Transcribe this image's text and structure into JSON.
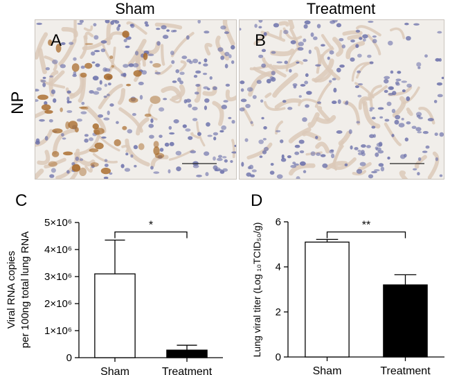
{
  "headers": {
    "left": "Sham",
    "right": "Treatment"
  },
  "row_label": "NP",
  "panel_letters": [
    "A",
    "B",
    "C",
    "D"
  ],
  "colors": {
    "tissue_bg": "#eeebe7",
    "nuclei": "#6b6fa8",
    "stain": "#b07a3a",
    "bar_sham": "#ffffff",
    "bar_treatment": "#000000"
  },
  "chart_data": [
    {
      "type": "bar",
      "panel": "C",
      "categories": [
        "Sham",
        "Treatment"
      ],
      "values": [
        3100000,
        280000
      ],
      "error_upper": [
        1250000,
        180000
      ],
      "fills": [
        "#ffffff",
        "#000000"
      ],
      "ylabel_line1": "Viral RNA copies",
      "ylabel_line2": "per 100ng total lung RNA",
      "ylim": [
        0,
        5000000
      ],
      "yticks": [
        0,
        1000000,
        2000000,
        3000000,
        4000000,
        5000000
      ],
      "ytick_labels": [
        "0",
        "1×10⁶",
        "2×10⁶",
        "3×10⁶",
        "4×10⁶",
        "5×10⁶"
      ],
      "significance": {
        "label": "*",
        "y": 4650000,
        "from": 0,
        "to": 1
      }
    },
    {
      "type": "bar",
      "panel": "D",
      "categories": [
        "Sham",
        "Treatment"
      ],
      "values": [
        5.1,
        3.2
      ],
      "error_upper": [
        0.12,
        0.45
      ],
      "fills": [
        "#ffffff",
        "#000000"
      ],
      "ylabel": "Lung viral titer (Log ₁₀TCID₅₀/g)",
      "ylim": [
        0,
        6
      ],
      "yticks": [
        0,
        2,
        4,
        6
      ],
      "ytick_labels": [
        "0",
        "2",
        "4",
        "6"
      ],
      "significance": {
        "label": "**",
        "y": 5.55,
        "from": 0,
        "to": 1
      }
    }
  ]
}
